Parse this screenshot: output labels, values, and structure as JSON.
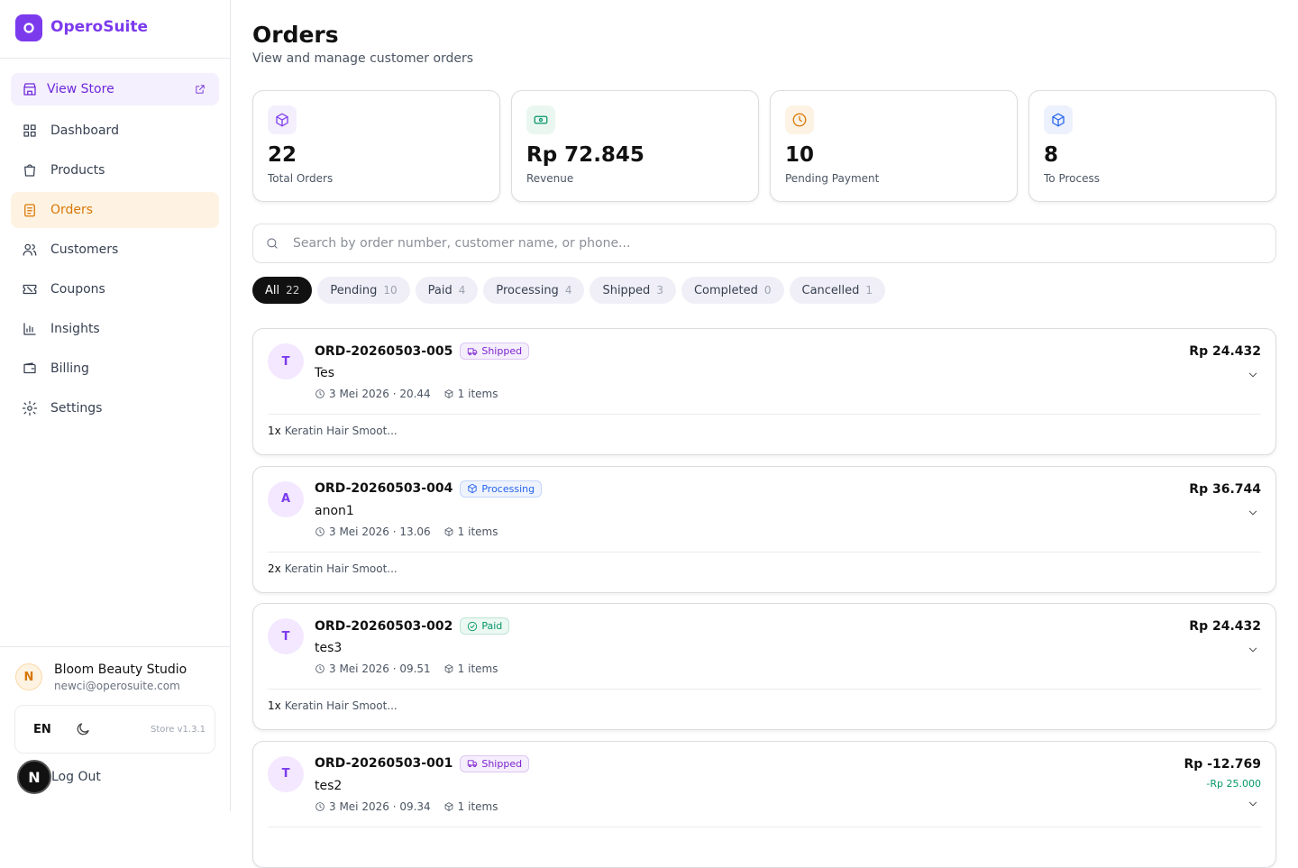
{
  "brand": "OperoSuite",
  "sidebar": {
    "view_store": "View Store",
    "nav": [
      "Dashboard",
      "Products",
      "Orders",
      "Customers",
      "Coupons",
      "Insights",
      "Billing",
      "Settings"
    ],
    "active_index": 2,
    "user": {
      "initial": "N",
      "name": "Bloom Beauty Studio",
      "email": "newci@operosuite.com"
    },
    "language": "EN",
    "version": "Store v1.3.1",
    "logout": "Log Out",
    "badge": "N"
  },
  "header": {
    "title": "Orders",
    "subtitle": "View and manage customer orders"
  },
  "stats": [
    {
      "value": "22",
      "label": "Total Orders",
      "color": "#7c3aed",
      "bg": "#f3effd"
    },
    {
      "value": "Rp 72.845",
      "label": "Revenue",
      "color": "#059669",
      "bg": "#eaf7f1"
    },
    {
      "value": "10",
      "label": "Pending Payment",
      "color": "#d97706",
      "bg": "#fdf3e4"
    },
    {
      "value": "8",
      "label": "To Process",
      "color": "#2563eb",
      "bg": "#ecf1fd"
    }
  ],
  "search": {
    "placeholder": "Search by order number, customer name, or phone..."
  },
  "filters": [
    {
      "label": "All",
      "count": "22"
    },
    {
      "label": "Pending",
      "count": "10"
    },
    {
      "label": "Paid",
      "count": "4"
    },
    {
      "label": "Processing",
      "count": "4"
    },
    {
      "label": "Shipped",
      "count": "3"
    },
    {
      "label": "Completed",
      "count": "0"
    },
    {
      "label": "Cancelled",
      "count": "1"
    }
  ],
  "active_filter": 0,
  "orders": [
    {
      "initial": "T",
      "number": "ORD-20260503-005",
      "status": "Shipped",
      "status_color": "#7e22ce",
      "status_bg": "#f5effd",
      "customer": "Tes",
      "date": "3 Mei 2026 · 20.44",
      "items": "1 items",
      "total": "Rp 24.432",
      "lines": [
        {
          "qty": "1x",
          "name": "Keratin Hair Smoot..."
        }
      ]
    },
    {
      "initial": "A",
      "number": "ORD-20260503-004",
      "status": "Processing",
      "status_color": "#2563eb",
      "status_bg": "#eef3fe",
      "customer": "anon1",
      "date": "3 Mei 2026 · 13.06",
      "items": "1 items",
      "total": "Rp 36.744",
      "lines": [
        {
          "qty": "2x",
          "name": "Keratin Hair Smoot..."
        }
      ]
    },
    {
      "initial": "T",
      "number": "ORD-20260503-002",
      "status": "Paid",
      "status_color": "#059669",
      "status_bg": "#ecf8f2",
      "customer": "tes3",
      "date": "3 Mei 2026 · 09.51",
      "items": "1 items",
      "total": "Rp 24.432",
      "lines": [
        {
          "qty": "1x",
          "name": "Keratin Hair Smoot..."
        }
      ]
    },
    {
      "initial": "T",
      "number": "ORD-20260503-001",
      "status": "Shipped",
      "status_color": "#7e22ce",
      "status_bg": "#f5effd",
      "customer": "tes2",
      "date": "3 Mei 2026 · 09.34",
      "items": "1 items",
      "total": "Rp -12.769",
      "discount": "-Rp 25.000",
      "lines": []
    }
  ]
}
